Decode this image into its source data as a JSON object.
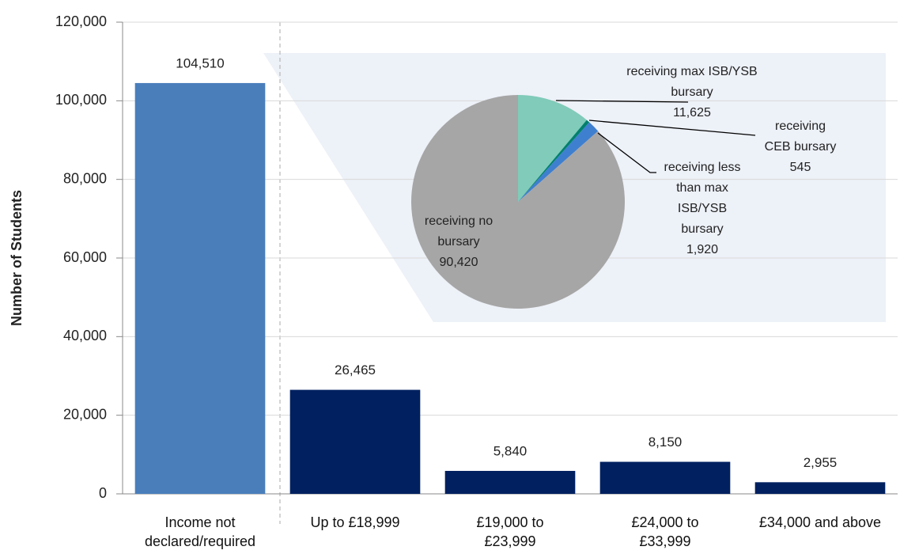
{
  "chart_data": [
    {
      "type": "bar",
      "y_label": "Number of Students",
      "categories": [
        "Income not declared/required",
        "Up to £18,999",
        "£19,000 to £23,999",
        "£24,000 to £33,999",
        "£34,000 and above"
      ],
      "values": [
        104510,
        26465,
        5840,
        8150,
        2955
      ],
      "value_labels": [
        "104,510",
        "26,465",
        "5,840",
        "8,150",
        "2,955"
      ],
      "colors": [
        "#4a7ebb",
        "#002060",
        "#002060",
        "#002060",
        "#002060"
      ],
      "ylim": [
        0,
        120000
      ],
      "yticks": [
        0,
        {
          "value": 20000,
          "label": "20,000"
        },
        {
          "value": 40000,
          "label": "40,000"
        },
        {
          "value": 60000,
          "label": "60,000"
        },
        {
          "value": 80000,
          "label": "80,000"
        },
        {
          "value": 100000,
          "label": "100,000"
        },
        {
          "value": 120000,
          "label": "120,000"
        }
      ],
      "grid": true
    },
    {
      "type": "pie",
      "categories": [
        "receiving max ISB/YSB bursary",
        "receiving CEB bursary",
        "receiving less than max ISB/YSB bursary",
        "receiving no bursary"
      ],
      "values": [
        11625,
        545,
        1920,
        90420
      ],
      "value_labels": [
        "11,625",
        "545",
        "1,920",
        "90,420"
      ],
      "colors": [
        "#80cbb9",
        "#00806e",
        "#3f7fcf",
        "#a6a6a6"
      ]
    }
  ]
}
